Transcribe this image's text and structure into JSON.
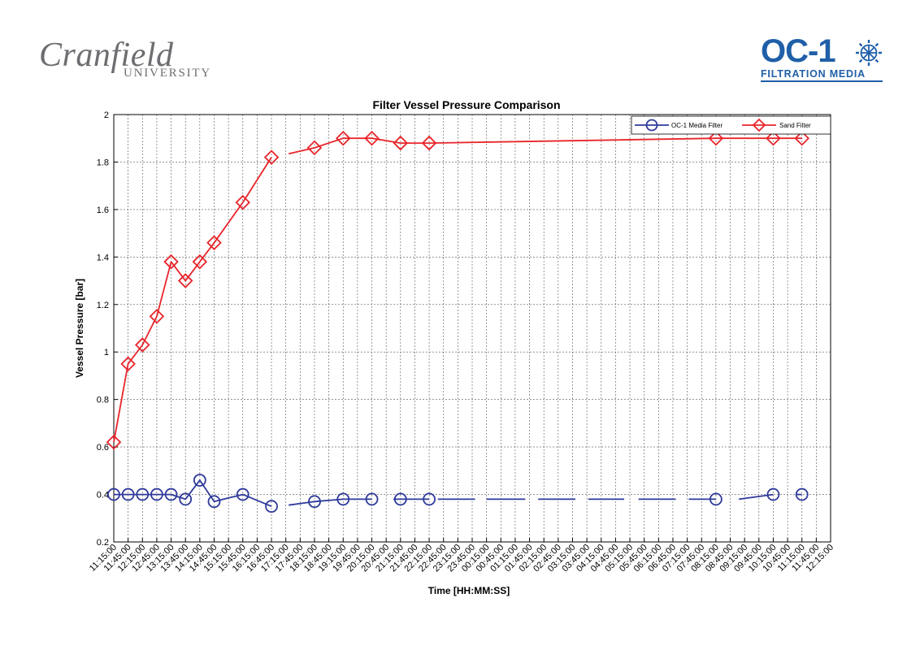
{
  "logos": {
    "left_word": "Cranfield",
    "left_sub": "UNIVERSITY",
    "right_mark": "OC-1",
    "right_tag": "FILTRATION MEDIA",
    "right_icon": "globe-icon",
    "right_color": "#1f5fa8"
  },
  "chart_data": {
    "type": "line",
    "title": "Filter Vessel Pressure Comparison",
    "xlabel": "Time [HH:MM:SS]",
    "ylabel": "Vessel Pressure [bar]",
    "ylim": [
      0.2,
      2.0
    ],
    "yticks": [
      "0.2",
      "0.4",
      "0.6",
      "0.8",
      "1",
      "1.2",
      "1.4",
      "1.6",
      "1.8",
      "2"
    ],
    "yticks_values": [
      0.2,
      0.4,
      0.6,
      0.8,
      1.0,
      1.2,
      1.4,
      1.6,
      1.8,
      2.0
    ],
    "grid": true,
    "legend_position": "top-right",
    "categories": [
      "11:15:00",
      "11:45:00",
      "12:15:00",
      "12:45:00",
      "13:15:00",
      "13:45:00",
      "14:15:00",
      "14:45:00",
      "15:15:00",
      "15:45:00",
      "16:15:00",
      "16:45:00",
      "17:15:00",
      "17:45:00",
      "18:15:00",
      "18:45:00",
      "19:15:00",
      "19:45:00",
      "20:15:00",
      "20:45:00",
      "21:15:00",
      "21:45:00",
      "22:15:00",
      "22:45:00",
      "23:15:00",
      "23:45:00",
      "00:15:00",
      "00:45:00",
      "01:15:00",
      "01:45:00",
      "02:15:00",
      "02:45:00",
      "03:15:00",
      "03:45:00",
      "04:15:00",
      "04:45:00",
      "05:15:00",
      "05:45:00",
      "06:15:00",
      "06:45:00",
      "07:15:00",
      "07:45:00",
      "08:15:00",
      "08:45:00",
      "09:15:00",
      "09:45:00",
      "10:15:00",
      "10:45:00",
      "11:15:00",
      "11:45:00",
      "12:15:00"
    ],
    "series": [
      {
        "name": "OC-1 Media Filter",
        "color": "#2e3a9b",
        "marker": "circle",
        "markers": [
          [
            0,
            0.4
          ],
          [
            1,
            0.4
          ],
          [
            2,
            0.4
          ],
          [
            3,
            0.4
          ],
          [
            4,
            0.4
          ],
          [
            5,
            0.38
          ],
          [
            6,
            0.46
          ],
          [
            7,
            0.37
          ],
          [
            9,
            0.4
          ],
          [
            11,
            0.35
          ],
          [
            14,
            0.37
          ],
          [
            16,
            0.38
          ],
          [
            18,
            0.38
          ],
          [
            20,
            0.38
          ],
          [
            22,
            0.38
          ],
          [
            42,
            0.38
          ],
          [
            46,
            0.4
          ],
          [
            48,
            0.4
          ]
        ],
        "segments": [
          [
            [
              0,
              0.4
            ],
            [
              1,
              0.4
            ],
            [
              2,
              0.4
            ],
            [
              3,
              0.4
            ],
            [
              4,
              0.4
            ],
            [
              5,
              0.38
            ],
            [
              6,
              0.46
            ],
            [
              7,
              0.37
            ],
            [
              8,
              0.385
            ],
            [
              9,
              0.4
            ],
            [
              11,
              0.35
            ]
          ],
          [
            [
              12.2,
              0.355
            ],
            [
              14,
              0.37
            ],
            [
              16,
              0.38
            ],
            [
              18,
              0.38
            ]
          ],
          [
            [
              19.5,
              0.38
            ],
            [
              22,
              0.38
            ]
          ],
          [
            [
              22.6,
              0.38
            ],
            [
              25.2,
              0.38
            ]
          ],
          [
            [
              26,
              0.38
            ],
            [
              28.7,
              0.38
            ]
          ],
          [
            [
              29.6,
              0.38
            ],
            [
              32.2,
              0.38
            ]
          ],
          [
            [
              33.1,
              0.38
            ],
            [
              35.6,
              0.38
            ]
          ],
          [
            [
              36.6,
              0.38
            ],
            [
              39.2,
              0.38
            ]
          ],
          [
            [
              40.1,
              0.38
            ],
            [
              42,
              0.38
            ]
          ],
          [
            [
              43.6,
              0.38
            ],
            [
              46,
              0.4
            ]
          ],
          [
            [
              47.6,
              0.4
            ],
            [
              48,
              0.4
            ]
          ]
        ]
      },
      {
        "name": "Sand Filter",
        "color": "#e8252b",
        "marker": "diamond",
        "markers": [
          [
            0,
            0.62
          ],
          [
            1,
            0.95
          ],
          [
            2,
            1.03
          ],
          [
            3,
            1.15
          ],
          [
            4,
            1.38
          ],
          [
            5,
            1.3
          ],
          [
            6,
            1.38
          ],
          [
            7,
            1.46
          ],
          [
            9,
            1.63
          ],
          [
            11,
            1.82
          ],
          [
            14,
            1.86
          ],
          [
            16,
            1.9
          ],
          [
            18,
            1.9
          ],
          [
            20,
            1.88
          ],
          [
            22,
            1.88
          ],
          [
            42,
            1.9
          ],
          [
            46,
            1.9
          ],
          [
            48,
            1.9
          ]
        ],
        "segments": [
          [
            [
              0,
              0.62
            ],
            [
              1,
              0.95
            ],
            [
              2,
              1.03
            ],
            [
              3,
              1.15
            ],
            [
              4,
              1.38
            ],
            [
              5,
              1.3
            ],
            [
              6,
              1.38
            ],
            [
              7,
              1.46
            ],
            [
              9,
              1.63
            ],
            [
              11,
              1.82
            ]
          ],
          [
            [
              12.2,
              1.835
            ],
            [
              14,
              1.86
            ],
            [
              16,
              1.9
            ],
            [
              18,
              1.9
            ],
            [
              20,
              1.88
            ],
            [
              22,
              1.88
            ],
            [
              42,
              1.9
            ],
            [
              46,
              1.9
            ],
            [
              48,
              1.9
            ]
          ]
        ]
      }
    ]
  }
}
